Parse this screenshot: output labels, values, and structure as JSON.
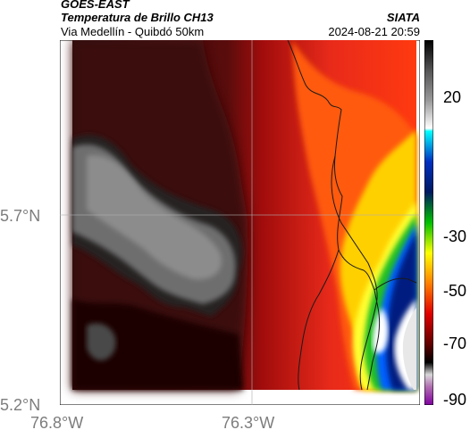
{
  "header": {
    "satellite": "GOES-EAST",
    "product": "Temperatura de Brillo CH13",
    "region": "Via Medellín - Quibdó 50km",
    "source": "SIATA",
    "datetime": "2024-08-21 20:59"
  },
  "map": {
    "lat_labels": [
      "5.7°N",
      "5.2°N"
    ],
    "lon_labels": [
      "76.8°W",
      "76.3°W"
    ],
    "gridlines": true
  },
  "colorbar": {
    "ticks": [
      "20",
      "-30",
      "-50",
      "-70",
      "-90"
    ],
    "stops": [
      {
        "value": 30,
        "color": "#000000"
      },
      {
        "value": 20,
        "color": "#555555"
      },
      {
        "value": 10,
        "color": "#9a9a9a"
      },
      {
        "value": 1,
        "color": "#ffffff"
      },
      {
        "value": 0,
        "color": "#00ffff"
      },
      {
        "value": -10,
        "color": "#0030c0"
      },
      {
        "value": -20,
        "color": "#001a60"
      },
      {
        "value": -30,
        "color": "#00c000"
      },
      {
        "value": -40,
        "color": "#ffff00"
      },
      {
        "value": -50,
        "color": "#ff8000"
      },
      {
        "value": -60,
        "color": "#e00000"
      },
      {
        "value": -70,
        "color": "#600000"
      },
      {
        "value": -76,
        "color": "#000000"
      },
      {
        "value": -80,
        "color": "#d8d8d8"
      },
      {
        "value": -84,
        "color": "#b070b0"
      },
      {
        "value": -90,
        "color": "#8000a0"
      }
    ]
  }
}
